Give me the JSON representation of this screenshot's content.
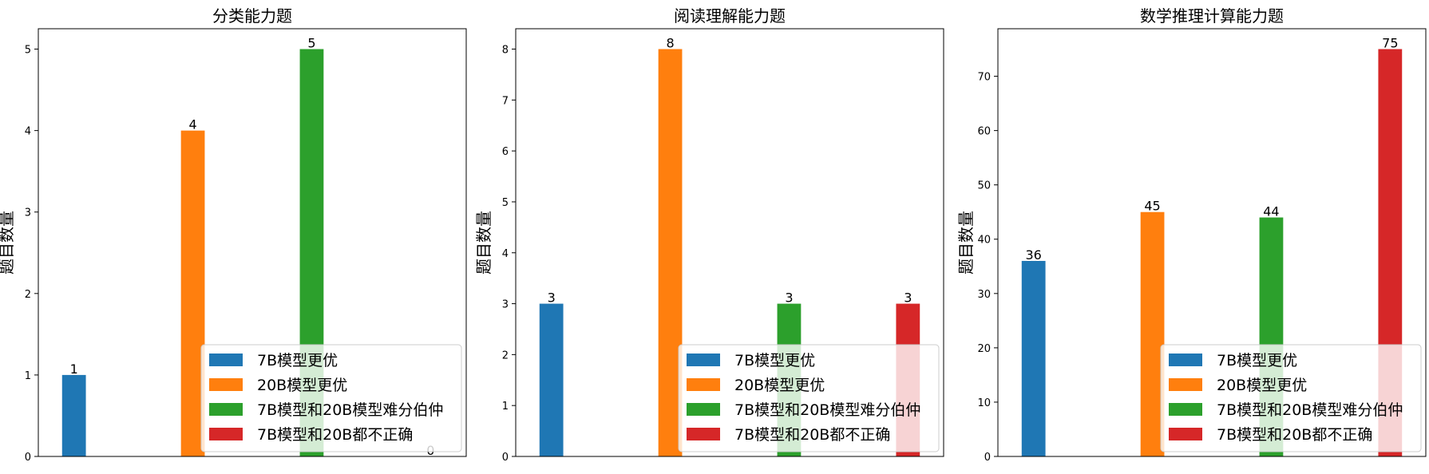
{
  "legend": {
    "labels": [
      "7B模型更优",
      "20B模型更优",
      "7B模型和20B模型难分伯仲",
      "7B模型和20B都不正确"
    ],
    "placement": "lower-right"
  },
  "colors": {
    "series": [
      "#1f77b4",
      "#ff7f0e",
      "#2ca02c",
      "#d62728"
    ]
  },
  "chart_data": [
    {
      "type": "bar",
      "title": "分类能力题",
      "ylabel": "题目数量",
      "xlabel": "",
      "ylim": [
        0,
        5.25
      ],
      "yticks": [
        0,
        1,
        2,
        3,
        4,
        5
      ],
      "categories": [
        "7B模型更优",
        "20B模型更优",
        "7B模型和20B模型难分伯仲",
        "7B模型和20B都不正确"
      ],
      "values": [
        1,
        4,
        5,
        0
      ],
      "grid": false,
      "legend": "lower-right"
    },
    {
      "type": "bar",
      "title": "阅读理解能力题",
      "ylabel": "题目数量",
      "xlabel": "",
      "ylim": [
        0,
        8.4
      ],
      "yticks": [
        0,
        1,
        2,
        3,
        4,
        5,
        6,
        7,
        8
      ],
      "categories": [
        "7B模型更优",
        "20B模型更优",
        "7B模型和20B模型难分伯仲",
        "7B模型和20B都不正确"
      ],
      "values": [
        3,
        8,
        3,
        3
      ],
      "grid": false,
      "legend": "lower-right"
    },
    {
      "type": "bar",
      "title": "数学推理计算能力题",
      "ylabel": "题目数量",
      "xlabel": "",
      "ylim": [
        0,
        78.75
      ],
      "yticks": [
        0,
        10,
        20,
        30,
        40,
        50,
        60,
        70
      ],
      "categories": [
        "7B模型更优",
        "20B模型更优",
        "7B模型和20B模型难分伯仲",
        "7B模型和20B都不正确"
      ],
      "values": [
        36,
        45,
        44,
        75
      ],
      "grid": false,
      "legend": "lower-right"
    }
  ]
}
